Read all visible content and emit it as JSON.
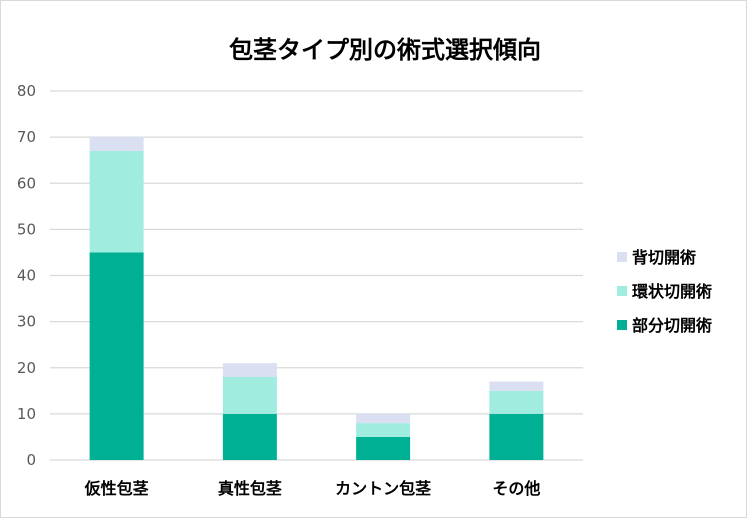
{
  "chart_data": {
    "type": "bar",
    "stacked": true,
    "title": "包茎タイプ別の術式選択傾向",
    "xlabel": "",
    "ylabel": "",
    "ylim": [
      0,
      80
    ],
    "yticks": [
      0,
      10,
      20,
      30,
      40,
      50,
      60,
      70,
      80
    ],
    "grid": true,
    "legend_position": "right",
    "categories": [
      "仮性包茎",
      "真性包茎",
      "カントン包茎",
      "その他"
    ],
    "series": [
      {
        "name": "部分切開術",
        "color": "#00B094",
        "values": [
          45,
          10,
          5,
          10
        ]
      },
      {
        "name": "環状切開術",
        "color": "#A0EDE0",
        "values": [
          22,
          8,
          3,
          5
        ]
      },
      {
        "name": "背切開術",
        "color": "#DAE0F2",
        "values": [
          3,
          3,
          2,
          2
        ]
      }
    ]
  }
}
